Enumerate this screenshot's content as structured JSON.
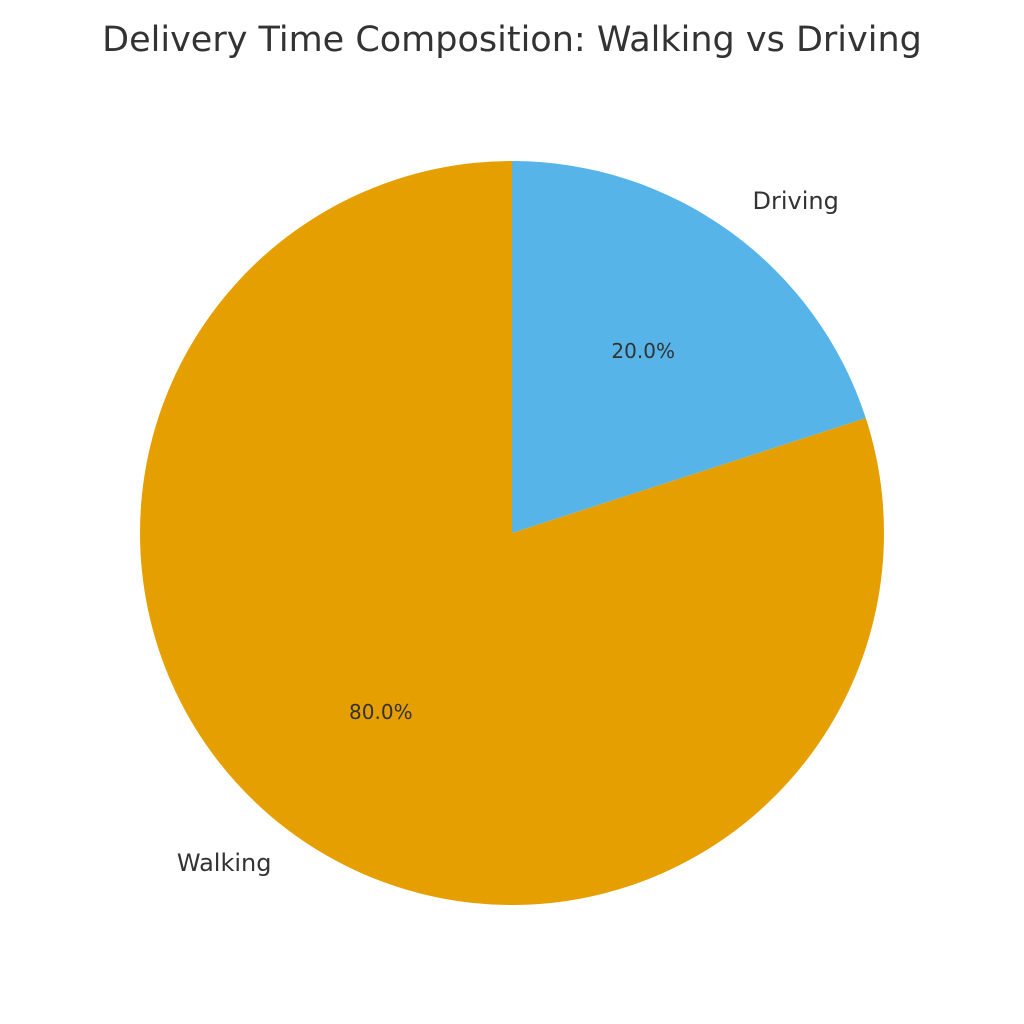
{
  "chart_data": {
    "type": "pie",
    "title": "Delivery Time Composition: Walking vs Driving",
    "slices": [
      {
        "label": "Walking",
        "value": 80.0,
        "percent_label": "80.0%",
        "color": "#E69F00"
      },
      {
        "label": "Driving",
        "value": 20.0,
        "percent_label": "20.0%",
        "color": "#56B4E9"
      }
    ],
    "start_angle": "top (12 o'clock)",
    "direction": "counter-clockwise",
    "legend": "none"
  }
}
